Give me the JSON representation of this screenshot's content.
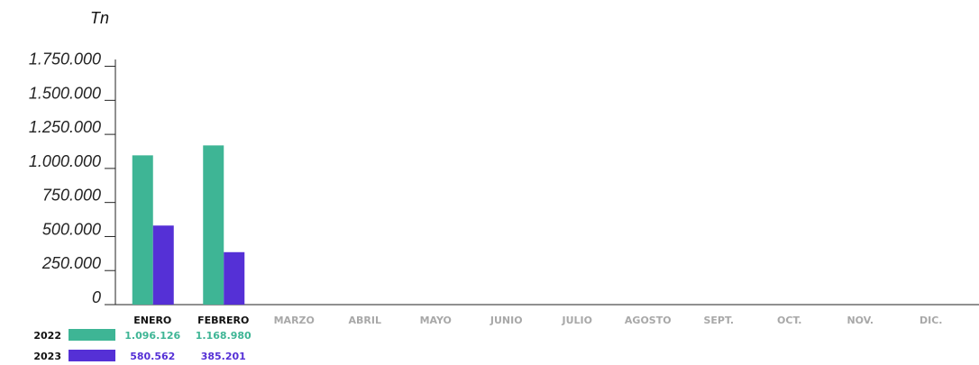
{
  "chart_data": {
    "type": "bar",
    "unit_label": "Tn",
    "categories": [
      "ENERO",
      "FEBRERO",
      "MARZO",
      "ABRIL",
      "MAYO",
      "JUNIO",
      "JULIO",
      "AGOSTO",
      "SEPT.",
      "OCT.",
      "NOV.",
      "DIC."
    ],
    "series": [
      {
        "name": "2022",
        "color": "#3eb595",
        "values": [
          1096126,
          1168980,
          null,
          null,
          null,
          null,
          null,
          null,
          null,
          null,
          null,
          null
        ],
        "labels": [
          "1.096.126",
          "1.168.980"
        ]
      },
      {
        "name": "2023",
        "color": "#5530d6",
        "values": [
          580562,
          385201,
          null,
          null,
          null,
          null,
          null,
          null,
          null,
          null,
          null,
          null
        ],
        "labels": [
          "580.562",
          "385.201"
        ]
      }
    ],
    "yticks": [
      0,
      250000,
      500000,
      750000,
      1000000,
      1250000,
      1500000,
      1750000
    ],
    "ytick_labels": [
      "0",
      "250.000",
      "500.000",
      "750.000",
      "1.000.000",
      "1.250.000",
      "1.500.000",
      "1.750.000"
    ],
    "ylim": [
      0,
      1800000
    ],
    "active_month_color": "#111111",
    "inactive_month_color": "#a8a8a8",
    "grid": false,
    "legend": "bottom-left"
  }
}
